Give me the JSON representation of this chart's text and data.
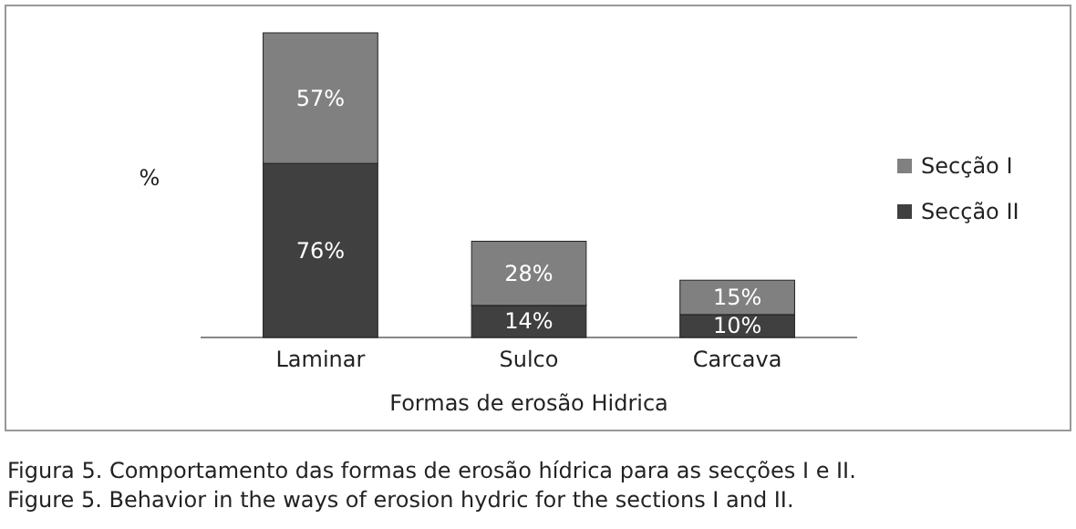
{
  "chart_data": {
    "type": "bar",
    "stacked": true,
    "xlabel": "Formas de erosão Hidrica",
    "ylabel": "%",
    "categories": [
      "Laminar",
      "Sulco",
      "Carcava"
    ],
    "legend": "right",
    "series": [
      {
        "name": "Secção II",
        "color": "#404040",
        "values": [
          76,
          14,
          10
        ],
        "value_labels": [
          "76%",
          "14%",
          "10%"
        ]
      },
      {
        "name": "Secção I",
        "color": "#808080",
        "values": [
          57,
          28,
          15
        ],
        "value_labels": [
          "57%",
          "28%",
          "15%"
        ]
      }
    ],
    "annotations": [
      "Figura 5. Comportamento das formas de erosão hídrica para as secções I e II.",
      "Figure 5. Behavior in the ways of erosion hydric for the sections I and II."
    ]
  }
}
